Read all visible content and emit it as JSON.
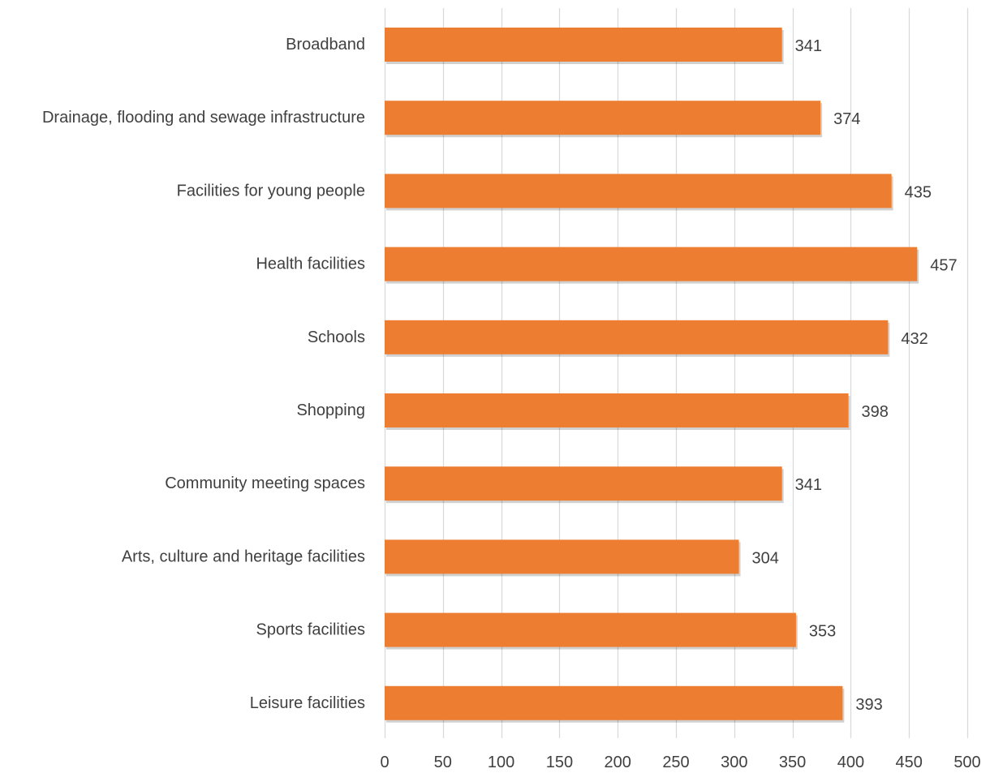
{
  "chart_data": {
    "type": "bar",
    "orientation": "horizontal",
    "categories": [
      "Broadband",
      "Drainage, flooding and sewage infrastructure",
      "Facilities for young people",
      "Health facilities",
      "Schools",
      "Shopping",
      "Community meeting spaces",
      "Arts, culture and heritage facilities",
      "Sports facilities",
      "Leisure facilities"
    ],
    "values": [
      341,
      374,
      435,
      457,
      432,
      398,
      341,
      304,
      353,
      393
    ],
    "xlim": [
      0,
      500
    ],
    "x_ticks": [
      0,
      50,
      100,
      150,
      200,
      250,
      300,
      350,
      400,
      450,
      500
    ],
    "title": "",
    "xlabel": "",
    "ylabel": "",
    "grid": "vertical",
    "legend": "none",
    "data_labels": true,
    "colors": {
      "bar": "#ED7D31",
      "grid": "#D9D9D9",
      "text": "#404040"
    }
  }
}
